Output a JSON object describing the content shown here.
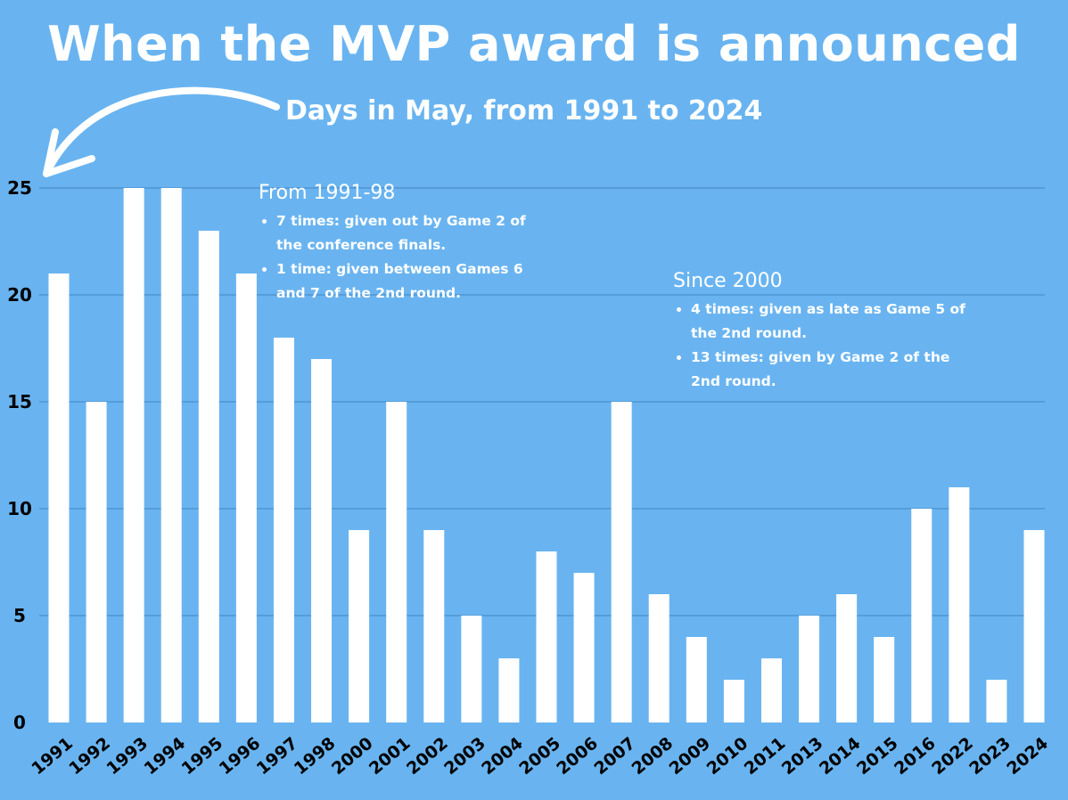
{
  "chart_data": {
    "type": "bar",
    "title": "When the MVP award is announced",
    "subtitle": "Days in May, from 1991 to 2024",
    "xlabel": "",
    "ylabel": "",
    "categories": [
      "1991",
      "1992",
      "1993",
      "1994",
      "1995",
      "1996",
      "1997",
      "1998",
      "2000",
      "2001",
      "2002",
      "2003",
      "2004",
      "2005",
      "2006",
      "2007",
      "2008",
      "2009",
      "2010",
      "2011",
      "2013",
      "2014",
      "2015",
      "2016",
      "2022",
      "2023",
      "2024"
    ],
    "values": [
      21,
      15,
      25,
      25,
      23,
      21,
      18,
      17,
      9,
      15,
      9,
      5,
      3,
      8,
      7,
      15,
      6,
      4,
      2,
      3,
      5,
      6,
      4,
      10,
      11,
      2,
      9
    ],
    "ylim": [
      0,
      25
    ],
    "yticks": [
      0,
      5,
      10,
      15,
      20,
      25
    ],
    "grid": true,
    "legend": "none",
    "annotations": [
      {
        "heading": "From 1991-98",
        "items": [
          "7 times: given out by Game 2 of the conference finals.",
          "1 time: given between Games 6 and 7 of the 2nd round."
        ]
      },
      {
        "heading": "Since 2000",
        "items": [
          "4 times: given as late as Game 5 of the 2nd round.",
          "13 times: given by Game 2 of the 2nd round."
        ]
      }
    ]
  },
  "colors": {
    "background": "#69b4f0",
    "bar": "#ffffff",
    "gridline": "#3f86c4",
    "text": "#ffffff",
    "axis_text": "#000000"
  },
  "decorations": {
    "arrow": "curved-arrow-pointing-to-y-axis"
  }
}
